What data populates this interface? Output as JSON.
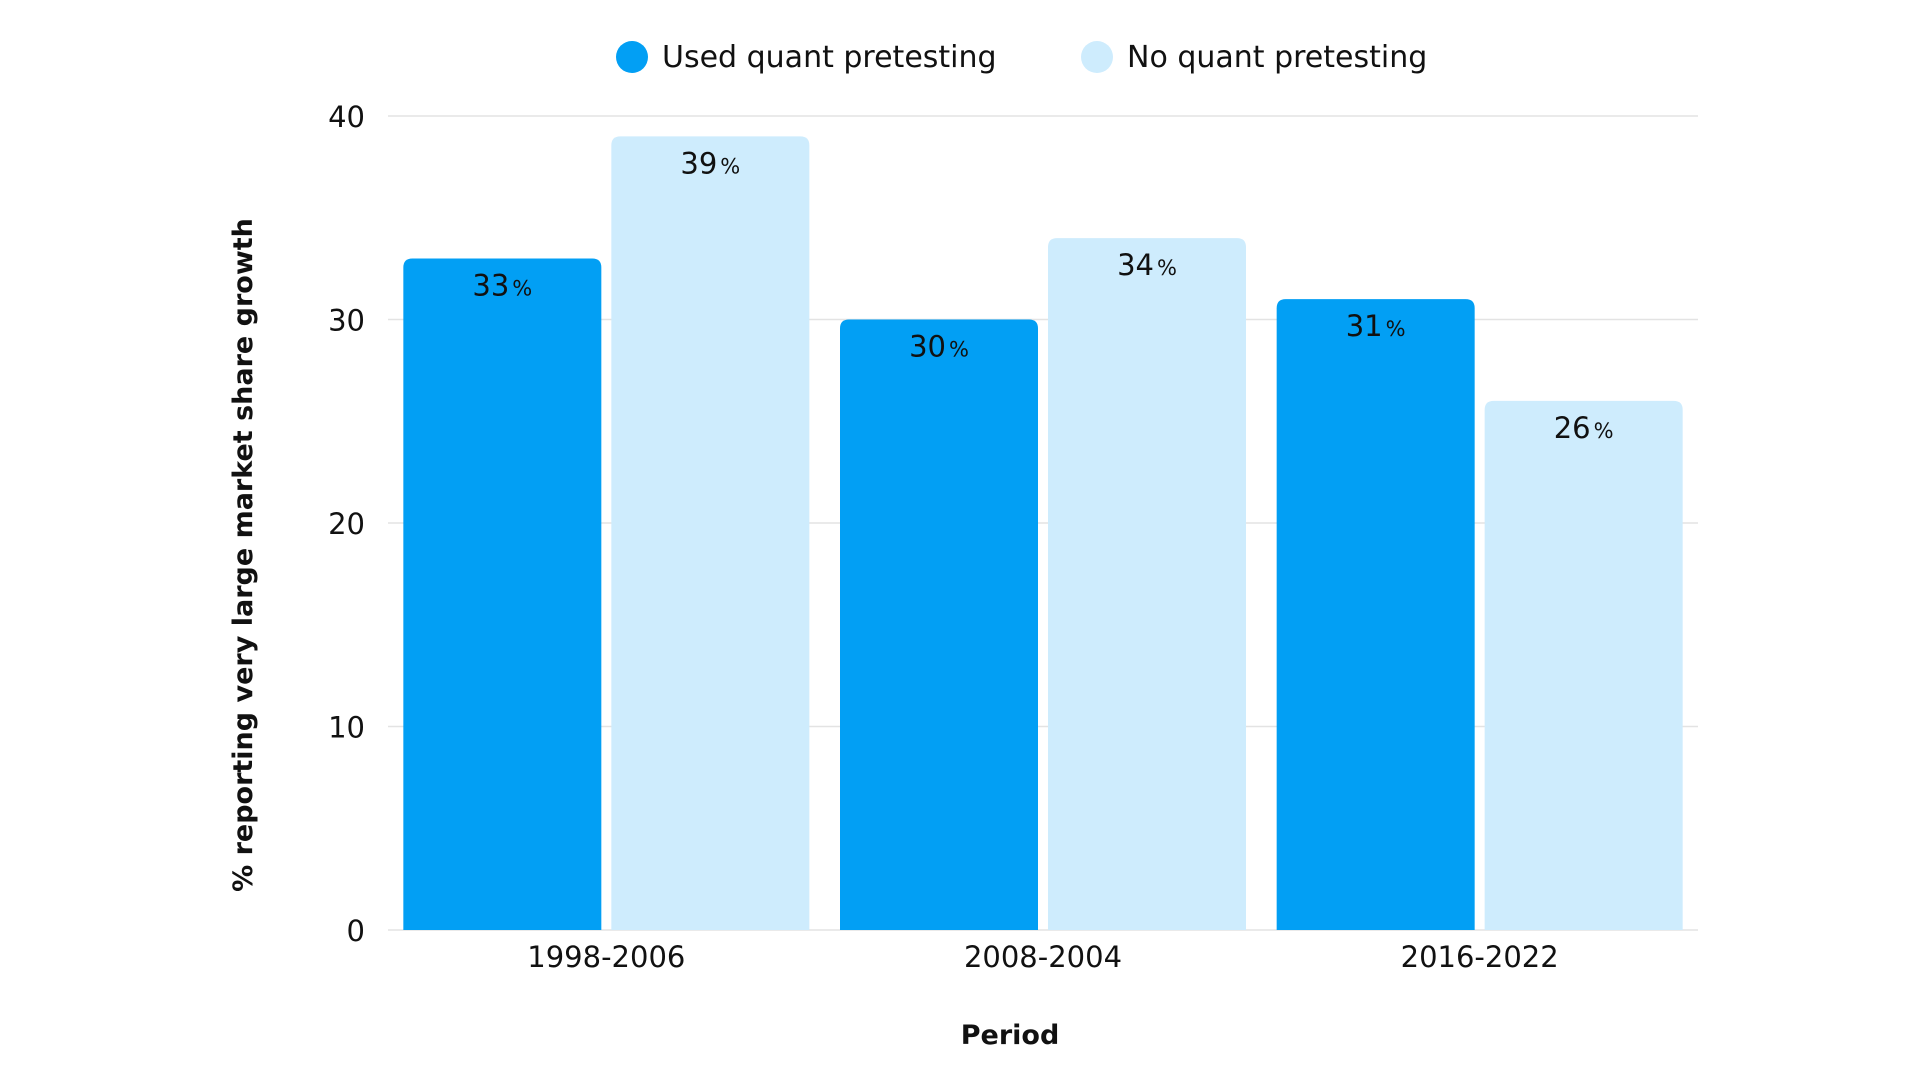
{
  "colors": {
    "used": "#029ff4",
    "no": "#ceecfd",
    "grid": "#e3e3e3",
    "text": "#111111"
  },
  "chart_data": {
    "type": "bar",
    "title": "",
    "xlabel": "Period",
    "ylabel": "% reporting very large market share growth",
    "categories": [
      "1998-2006",
      "2008-2004",
      "2016-2022"
    ],
    "series": [
      {
        "name": "Used quant pretesting",
        "values": [
          33,
          30,
          31
        ],
        "color": "#029ff4"
      },
      {
        "name": "No quant pretesting",
        "values": [
          39,
          34,
          26
        ],
        "color": "#ceecfd"
      }
    ],
    "ylim": [
      0,
      40
    ],
    "yticks": [
      0,
      10,
      20,
      30,
      40
    ],
    "value_suffix": "%",
    "grid": true,
    "legend_position": "top-center"
  }
}
